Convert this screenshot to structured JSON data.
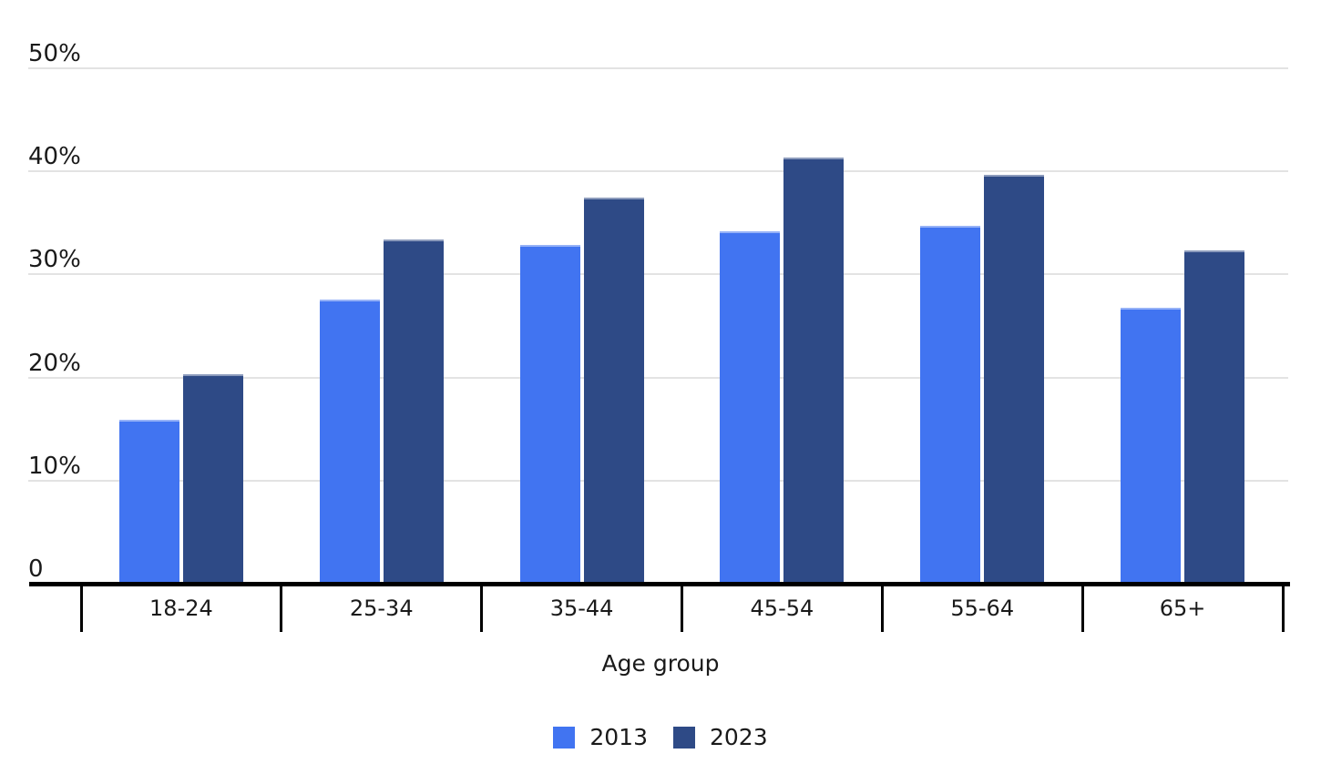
{
  "chart_data": {
    "type": "bar",
    "title": "",
    "xlabel": "Age group",
    "ylabel": "",
    "categories": [
      "18-24",
      "25-34",
      "35-44",
      "45-54",
      "55-64",
      "65+"
    ],
    "series": [
      {
        "name": "2013",
        "color": "#4174F1",
        "values": [
          15.9,
          27.6,
          32.9,
          34.2,
          34.7,
          26.8
        ]
      },
      {
        "name": "2023",
        "color": "#2E4A86",
        "values": [
          20.3,
          33.4,
          37.5,
          41.3,
          39.7,
          32.3
        ]
      }
    ],
    "y_ticks": [
      {
        "value": 0,
        "label": "0"
      },
      {
        "value": 10,
        "label": "10%"
      },
      {
        "value": 20,
        "label": "20%"
      },
      {
        "value": 30,
        "label": "30%"
      },
      {
        "value": 40,
        "label": "40%"
      },
      {
        "value": 50,
        "label": "50%"
      }
    ],
    "ylim": [
      0,
      50
    ],
    "grid": true,
    "legend_position": "bottom",
    "colors": {
      "gridline": "#e3e3e3",
      "axis": "#000000",
      "text": "#1a1a1a",
      "background": "#ffffff"
    }
  }
}
